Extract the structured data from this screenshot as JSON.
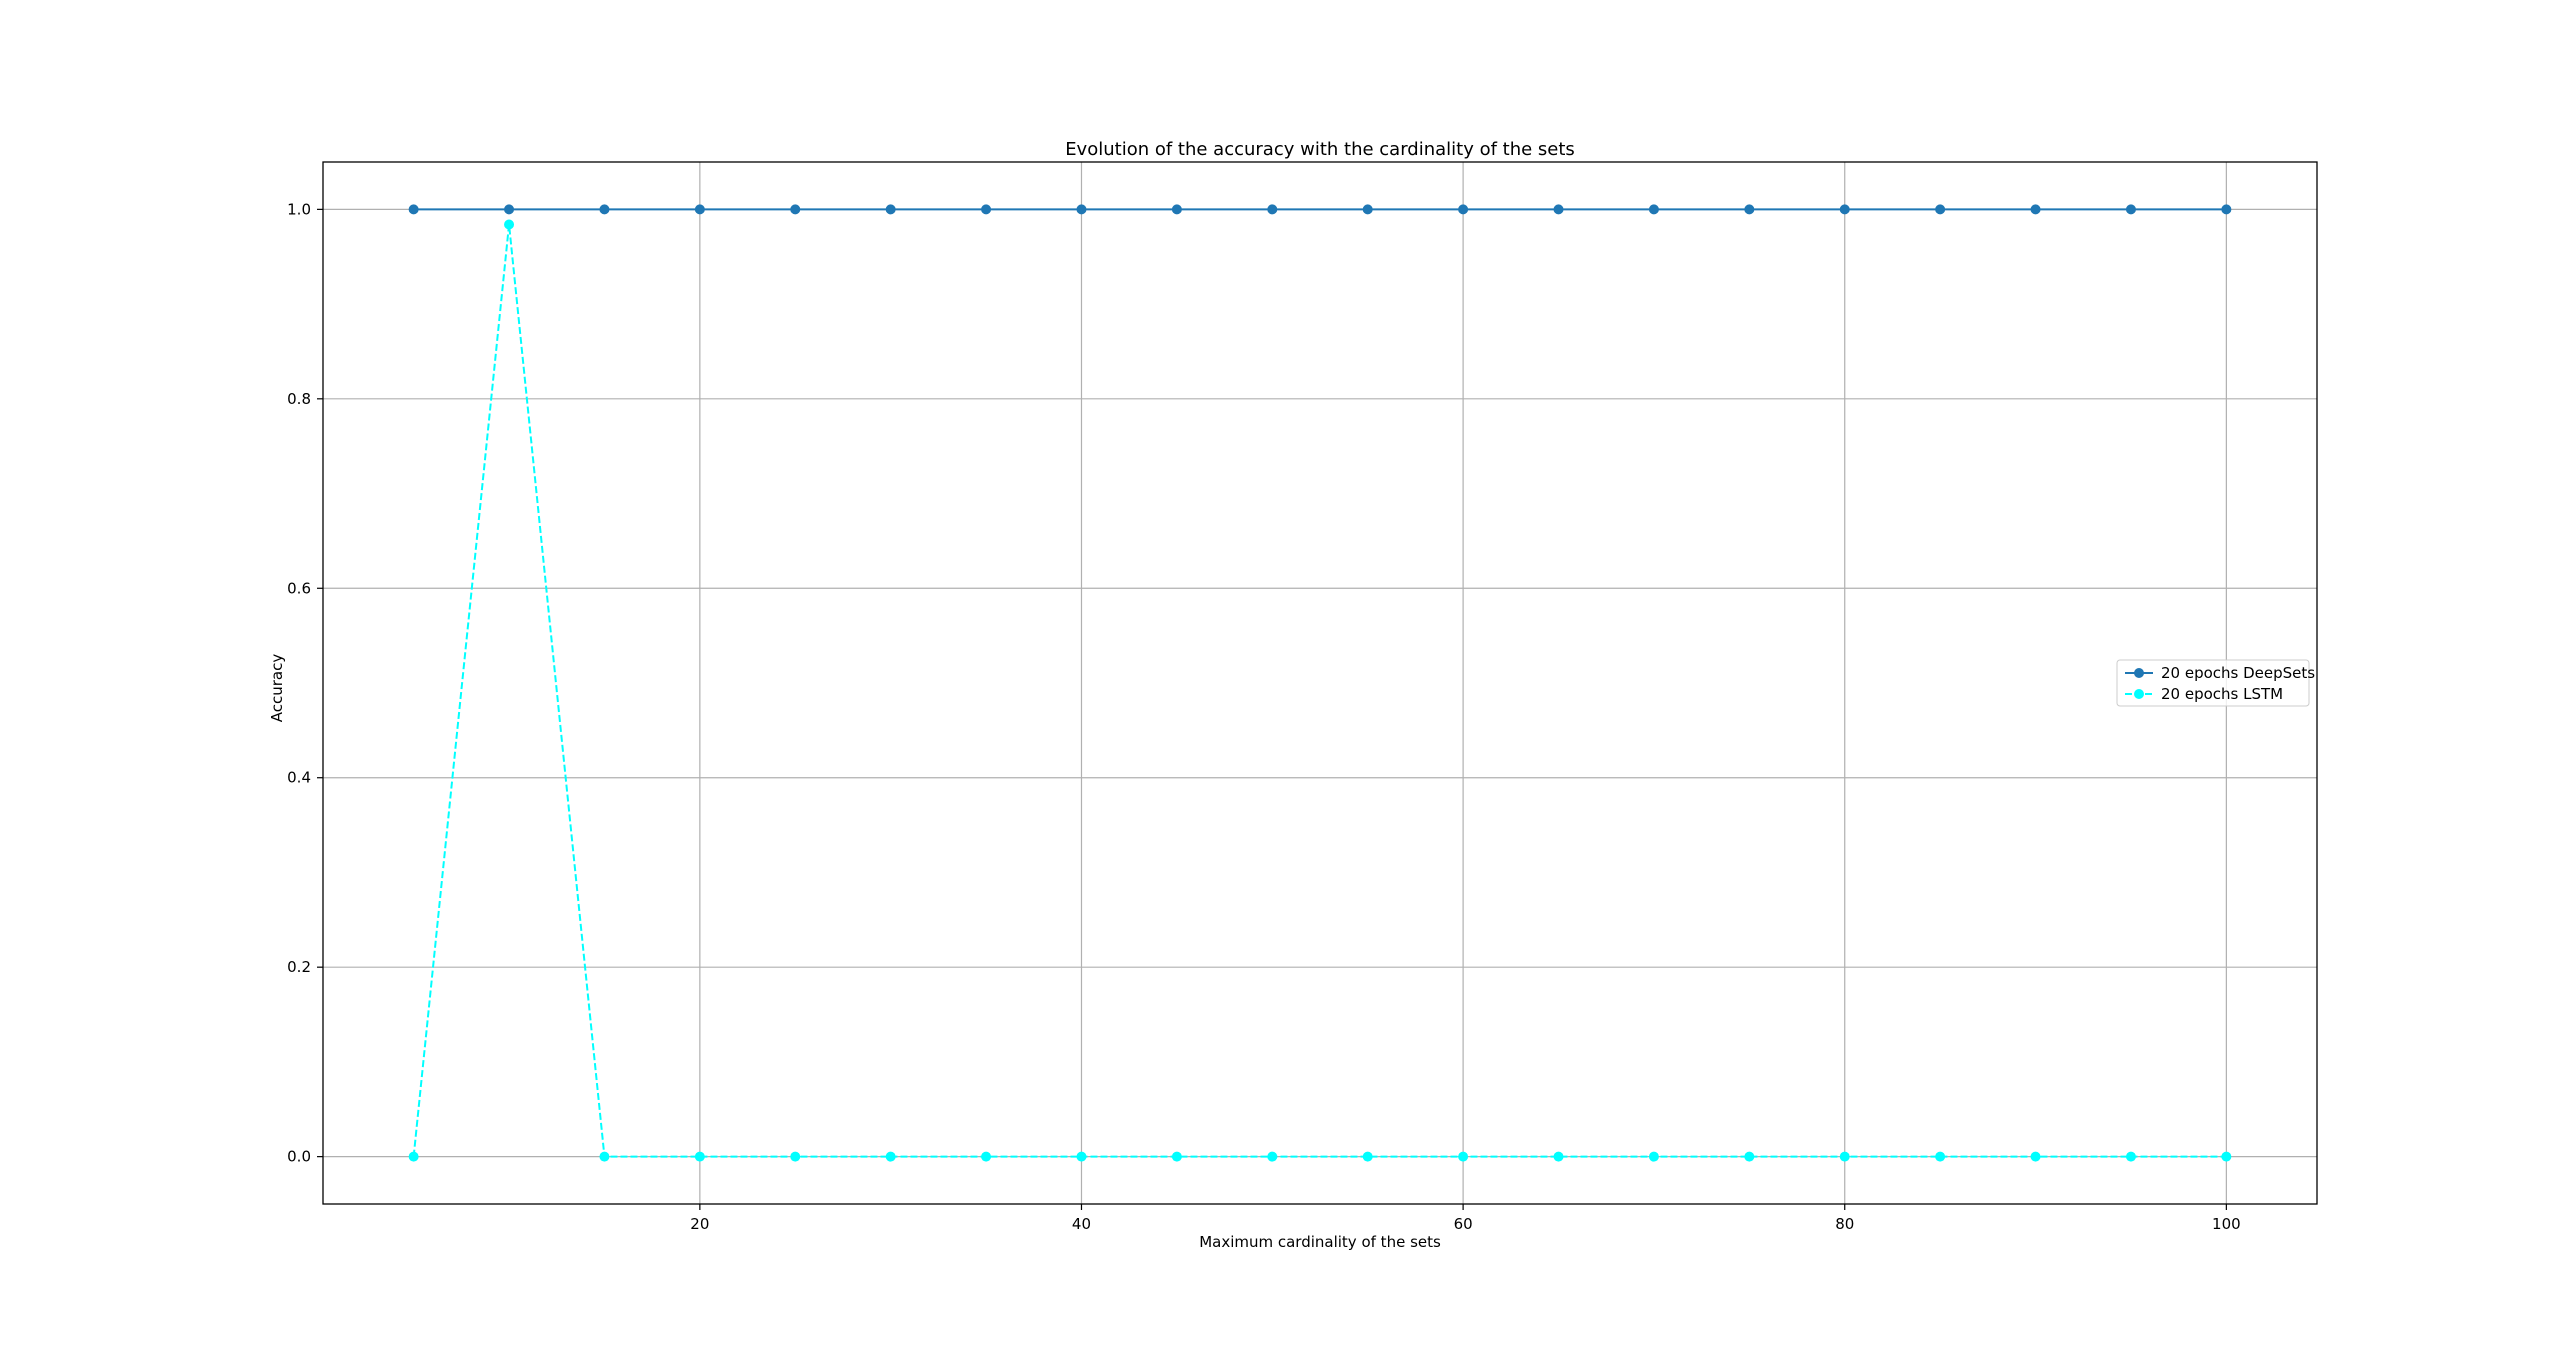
{
  "chart_data": {
    "type": "line",
    "title": "Evolution of the accuracy with the cardinality of the sets",
    "xlabel": "Maximum cardinality of the sets",
    "ylabel": "Accuracy",
    "xlim": [
      0.25,
      104.75
    ],
    "ylim": [
      -0.05,
      1.05
    ],
    "xticks": [
      20,
      40,
      60,
      80,
      100
    ],
    "yticks": [
      0.0,
      0.2,
      0.4,
      0.6,
      0.8,
      1.0
    ],
    "xtick_labels": [
      "20",
      "40",
      "60",
      "80",
      "100"
    ],
    "ytick_labels": [
      "0.0",
      "0.2",
      "0.4",
      "0.6",
      "0.8",
      "1.0"
    ],
    "grid": true,
    "legend_position": "center-right",
    "x": [
      5,
      10,
      15,
      20,
      25,
      30,
      35,
      40,
      45,
      50,
      55,
      60,
      65,
      70,
      75,
      80,
      85,
      90,
      95,
      100
    ],
    "series": [
      {
        "name": "20 epochs DeepSets",
        "color": "#1f77b4",
        "linestyle": "solid",
        "marker": "circle",
        "values": [
          1,
          1,
          1,
          1,
          1,
          1,
          1,
          1,
          1,
          1,
          1,
          1,
          1,
          1,
          1,
          1,
          1,
          1,
          1,
          1
        ]
      },
      {
        "name": "20 epochs LSTM",
        "color": "#00ffff",
        "linestyle": "dashed",
        "marker": "circle",
        "values": [
          0,
          0.984,
          0,
          0,
          0,
          0,
          0,
          0,
          0,
          0,
          0,
          0,
          0,
          0,
          0,
          0,
          0,
          0,
          0,
          0
        ]
      }
    ]
  }
}
